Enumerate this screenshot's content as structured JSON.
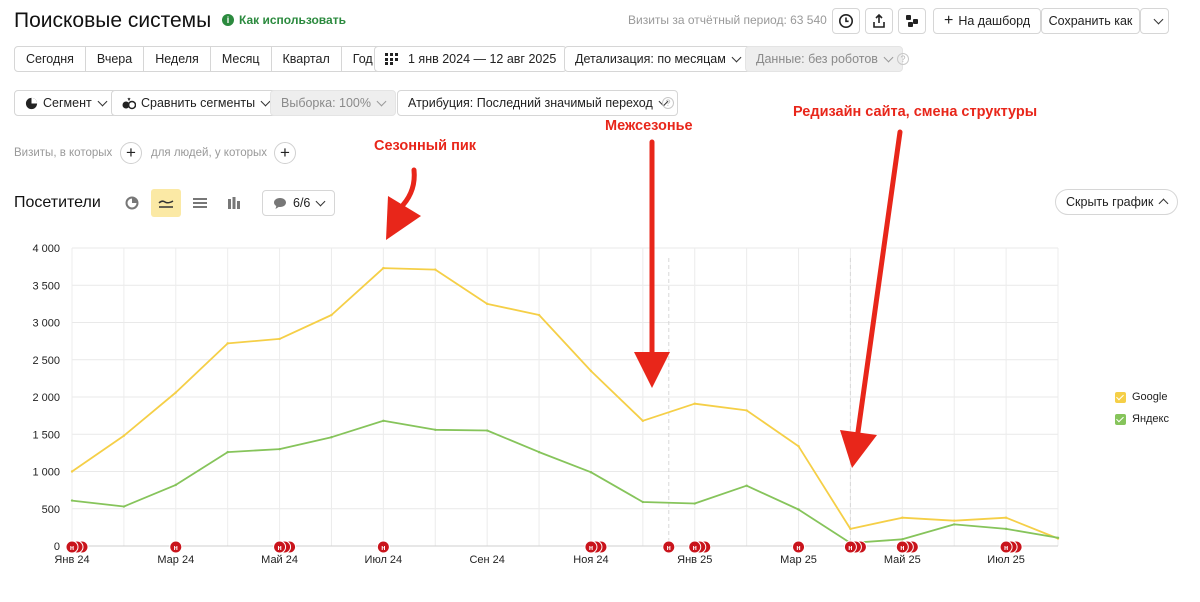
{
  "header": {
    "title": "Поисковые системы",
    "howto": "Как использовать",
    "visits_label": "Визиты за отчётный период: 63 540",
    "dashboard_label": "На дашборд",
    "save_label": "Сохранить как"
  },
  "periods": [
    "Сегодня",
    "Вчера",
    "Неделя",
    "Месяц",
    "Квартал",
    "Год"
  ],
  "date_range": "1 янв 2024 — 12 авг 2025",
  "detail": "Детализация: по месяцам",
  "robots": "Данные: без роботов",
  "segment": "Сегмент",
  "compare": "Сравнить сегменты",
  "sample": "Выборка: 100%",
  "attribution": "Атрибуция: Последний значимый переход",
  "filter_visits": "Визиты, в которых",
  "filter_people": "для людей, у которых",
  "section_title": "Посетители",
  "series_count": "6/6",
  "hide_chart": "Скрыть график",
  "annotations": {
    "peak": "Сезонный пик",
    "offseason": "Межсезонье",
    "redesign": "Редизайн сайта, смена структуры"
  },
  "colors": {
    "google": "#f5cf47",
    "yandex": "#86c45b",
    "accent": "#e8261a",
    "marker": "#c9141c"
  },
  "chart_data": {
    "type": "line",
    "x": [
      "Янв 24",
      "Фев 24",
      "Мар 24",
      "Апр 24",
      "Май 24",
      "Июн 24",
      "Июл 24",
      "Авг 24",
      "Сен 24",
      "Окт 24",
      "Ноя 24",
      "Дек 24",
      "Янв 25",
      "Фев 25",
      "Мар 25",
      "Апр 25",
      "Май 25",
      "Июн 25",
      "Июл 25",
      "Авг 25"
    ],
    "x_tick_labels": [
      "Янв 24",
      "Мар 24",
      "Май 24",
      "Июл 24",
      "Сен 24",
      "Ноя 24",
      "Янв 25",
      "Мар 25",
      "Май 25",
      "Июл 25"
    ],
    "y_tick_labels": [
      "0",
      "500",
      "1 000",
      "1 500",
      "2 000",
      "2 500",
      "3 000",
      "3 500",
      "4 000"
    ],
    "ylim": [
      0,
      4000
    ],
    "grid": true,
    "legend_position": "right",
    "series": [
      {
        "name": "Google",
        "values": [
          1000,
          1480,
          2060,
          2720,
          2780,
          3100,
          3730,
          3710,
          3250,
          3100,
          2350,
          1680,
          1910,
          1820,
          1340,
          230,
          380,
          340,
          380,
          100
        ]
      },
      {
        "name": "Яндекс",
        "values": [
          610,
          530,
          820,
          1260,
          1300,
          1460,
          1680,
          1560,
          1550,
          1260,
          990,
          590,
          570,
          810,
          490,
          40,
          90,
          290,
          230,
          110
        ]
      }
    ],
    "markers": [
      {
        "x": 0.0,
        "count": 3
      },
      {
        "x": 2.0,
        "count": 1
      },
      {
        "x": 4.0,
        "count": 3
      },
      {
        "x": 6.0,
        "count": 1
      },
      {
        "x": 10.0,
        "count": 3
      },
      {
        "x": 11.5,
        "count": 1
      },
      {
        "x": 12.0,
        "count": 3
      },
      {
        "x": 14.0,
        "count": 1
      },
      {
        "x": 15.0,
        "count": 3
      },
      {
        "x": 16.0,
        "count": 3
      },
      {
        "x": 18.0,
        "count": 3
      }
    ]
  }
}
